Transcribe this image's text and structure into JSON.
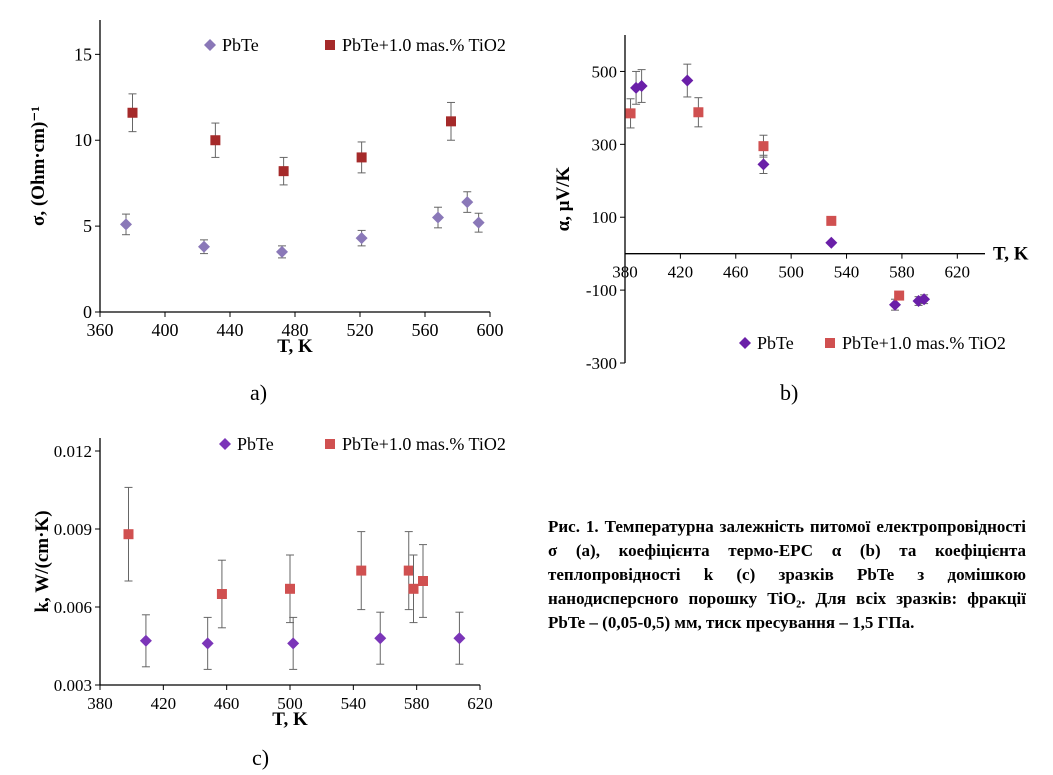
{
  "chart_data": [
    {
      "id": "a",
      "type": "scatter",
      "panel_label": "a)",
      "xlabel": "T, K",
      "ylabel": "σ, (Ohm·cm)⁻¹",
      "xlim": [
        360,
        600
      ],
      "ylim": [
        0,
        17
      ],
      "xticks": [
        360,
        400,
        440,
        480,
        520,
        560,
        600
      ],
      "yticks": [
        0,
        5,
        10,
        15
      ],
      "grid": false,
      "legend_position": "top",
      "series": [
        {
          "name": "PbTe",
          "marker": "diamond",
          "color": "#8a78b8",
          "points": [
            {
              "x": 376,
              "y": 5.1,
              "err": 0.6
            },
            {
              "x": 424,
              "y": 3.8,
              "err": 0.4
            },
            {
              "x": 472,
              "y": 3.5,
              "err": 0.35
            },
            {
              "x": 521,
              "y": 4.3,
              "err": 0.45
            },
            {
              "x": 568,
              "y": 5.5,
              "err": 0.6
            },
            {
              "x": 586,
              "y": 6.4,
              "err": 0.6
            },
            {
              "x": 593,
              "y": 5.2,
              "err": 0.55
            }
          ]
        },
        {
          "name": "PbTe+1.0 mas.% TiO2",
          "marker": "square",
          "color": "#a52a2a",
          "points": [
            {
              "x": 380,
              "y": 11.6,
              "err": 1.1
            },
            {
              "x": 431,
              "y": 10.0,
              "err": 1.0
            },
            {
              "x": 473,
              "y": 8.2,
              "err": 0.8
            },
            {
              "x": 521,
              "y": 9.0,
              "err": 0.9
            },
            {
              "x": 576,
              "y": 11.1,
              "err": 1.1
            }
          ]
        }
      ]
    },
    {
      "id": "b",
      "type": "scatter",
      "panel_label": "b)",
      "xlabel": "T, K",
      "ylabel": "α, μV/K",
      "xlim": [
        380,
        640
      ],
      "ylim": [
        -300,
        600
      ],
      "xticks": [
        380,
        420,
        460,
        500,
        540,
        580,
        620
      ],
      "yticks": [
        -300,
        -100,
        100,
        300,
        500
      ],
      "grid": false,
      "legend_position": "bottom",
      "series": [
        {
          "name": "PbTe",
          "marker": "diamond",
          "color": "#6a1fa8",
          "points": [
            {
              "x": 388,
              "y": 455,
              "err": 45
            },
            {
              "x": 392,
              "y": 460,
              "err": 45
            },
            {
              "x": 425,
              "y": 475,
              "err": 45
            },
            {
              "x": 480,
              "y": 245,
              "err": 25
            },
            {
              "x": 529,
              "y": 30,
              "err": 0
            },
            {
              "x": 575,
              "y": -140,
              "err": 15
            },
            {
              "x": 592,
              "y": -130,
              "err": 12
            },
            {
              "x": 596,
              "y": -125,
              "err": 12
            }
          ]
        },
        {
          "name": "PbTe+1.0 mas.% TiO2",
          "marker": "square",
          "color": "#d05050",
          "points": [
            {
              "x": 384,
              "y": 385,
              "err": 40
            },
            {
              "x": 433,
              "y": 388,
              "err": 40
            },
            {
              "x": 480,
              "y": 295,
              "err": 30
            },
            {
              "x": 529,
              "y": 90,
              "err": 0
            },
            {
              "x": 578,
              "y": -115,
              "err": 0
            }
          ]
        }
      ]
    },
    {
      "id": "c",
      "type": "scatter",
      "panel_label": "c)",
      "xlabel": "T, K",
      "ylabel": "k, W/(cm·K)",
      "xlim": [
        380,
        620
      ],
      "ylim": [
        0.003,
        0.0125
      ],
      "xticks": [
        380,
        420,
        460,
        500,
        540,
        580,
        620
      ],
      "yticks": [
        0.003,
        0.006,
        0.009,
        0.012
      ],
      "grid": false,
      "legend_position": "top",
      "series": [
        {
          "name": "PbTe",
          "marker": "diamond",
          "color": "#7b35b8",
          "points": [
            {
              "x": 409,
              "y": 0.0047,
              "err": 0.001
            },
            {
              "x": 448,
              "y": 0.0046,
              "err": 0.001
            },
            {
              "x": 502,
              "y": 0.0046,
              "err": 0.001
            },
            {
              "x": 557,
              "y": 0.0048,
              "err": 0.001
            },
            {
              "x": 607,
              "y": 0.0048,
              "err": 0.001
            }
          ]
        },
        {
          "name": "PbTe+1.0 mas.% TiO2",
          "marker": "square",
          "color": "#d05050",
          "points": [
            {
              "x": 398,
              "y": 0.0088,
              "err": 0.0018
            },
            {
              "x": 457,
              "y": 0.0065,
              "err": 0.0013
            },
            {
              "x": 500,
              "y": 0.0067,
              "err": 0.0013
            },
            {
              "x": 545,
              "y": 0.0074,
              "err": 0.0015
            },
            {
              "x": 575,
              "y": 0.0074,
              "err": 0.0015
            },
            {
              "x": 578,
              "y": 0.0067,
              "err": 0.0013
            },
            {
              "x": 584,
              "y": 0.007,
              "err": 0.0014
            }
          ]
        }
      ]
    }
  ],
  "caption": {
    "label": "Рис. 1.",
    "text": "Температурна залежність питомої електропровідності σ (a), коефіцієнта термо-ЕРС α (b) та коефіцієнта теплопровідності k (c) зразків PbTe з домішкою нанодисперсного порошку TiO₂. Для всіх зразків: фракції PbTe – (0,05-0,5) мм, тиск пресування – 1,5 ГПа."
  }
}
